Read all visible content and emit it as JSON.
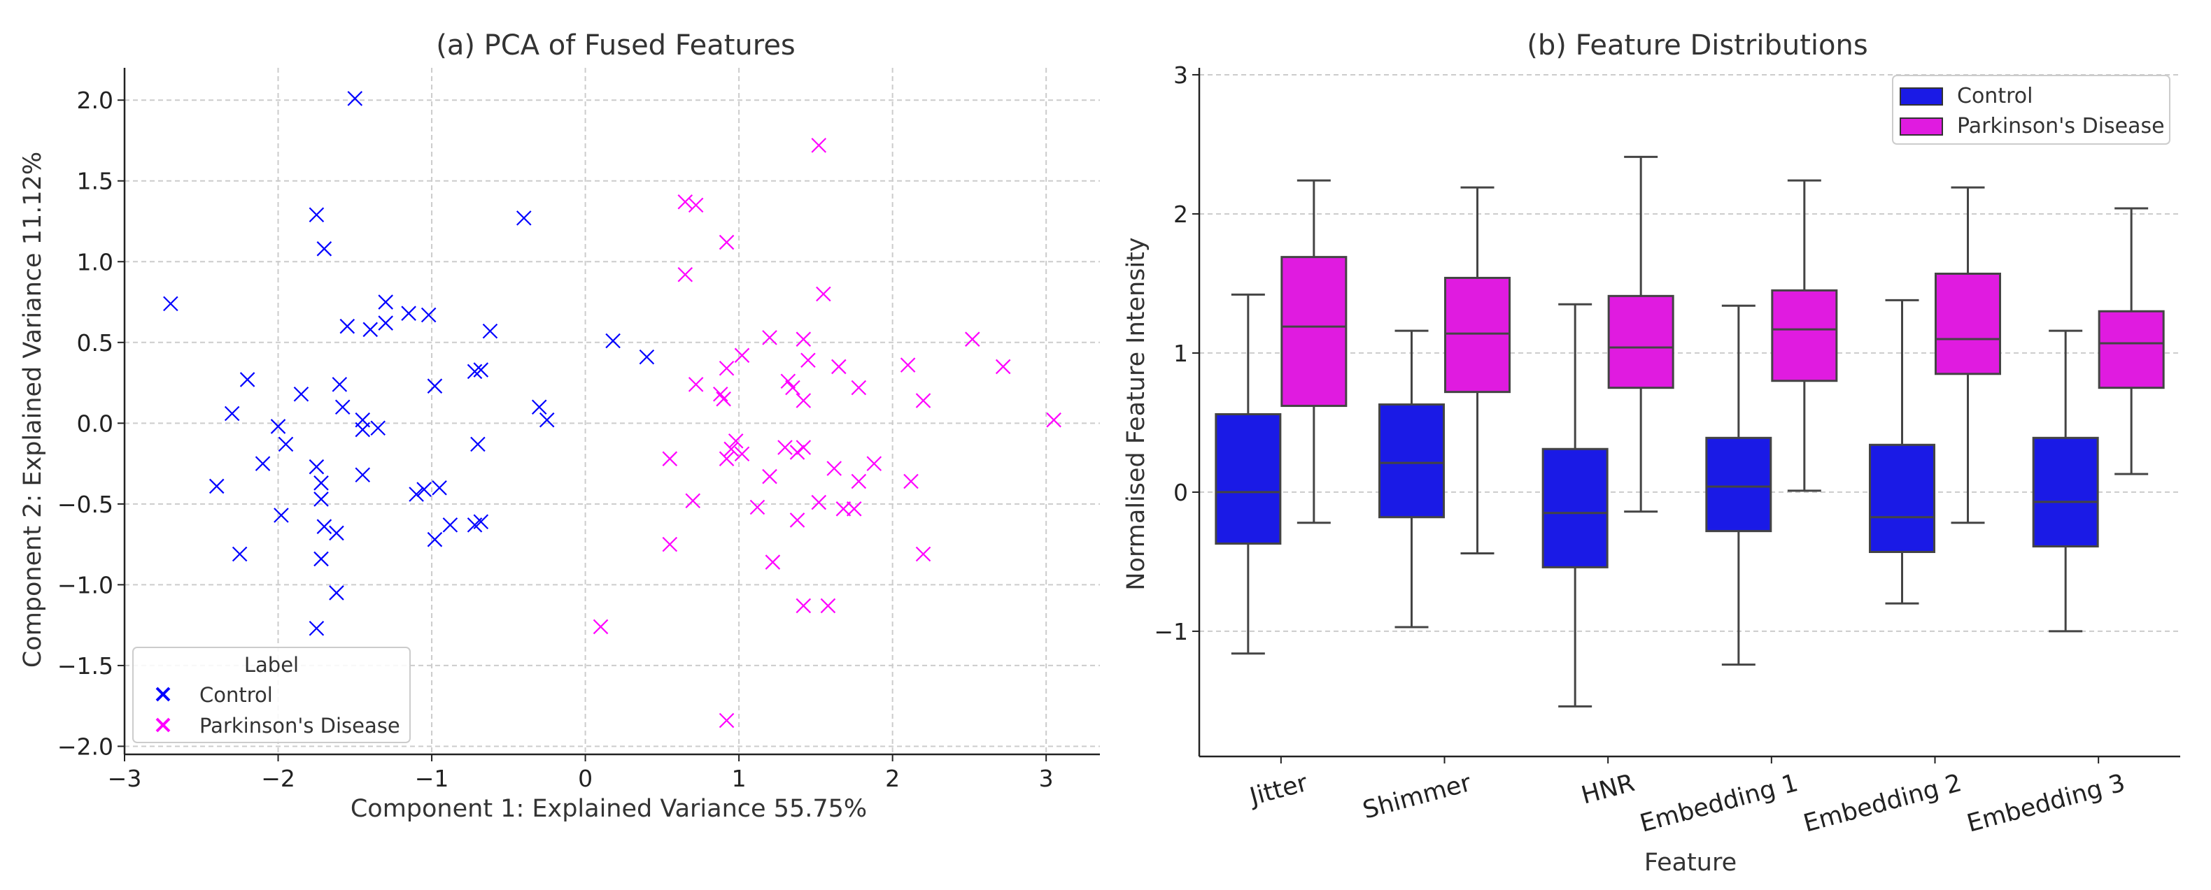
{
  "colors": {
    "control": "#0000ff",
    "pd": "#ff00ff",
    "control_box": "#1a1ae6",
    "pd_box": "#e01be0",
    "grid": "#cccccc",
    "axis": "#222222",
    "text": "#333333",
    "whisker": "#444444"
  },
  "chart_data": [
    {
      "type": "scatter",
      "title": "(a) PCA of Fused Features",
      "xlabel": "Component 1: Explained Variance 55.75%",
      "ylabel": "Component 2: Explained Variance 11.12%",
      "xlim": [
        -3,
        3.35
      ],
      "ylim": [
        -2.05,
        2.2
      ],
      "xticks": [
        -3,
        -2,
        -1,
        0,
        1,
        2,
        3
      ],
      "yticks": [
        -2.0,
        -1.5,
        -1.0,
        -0.5,
        0.0,
        0.5,
        1.0,
        1.5,
        2.0
      ],
      "ytick_labels": [
        "−2.0",
        "−1.5",
        "−1.0",
        "−0.5",
        "0.0",
        "0.5",
        "1.0",
        "1.5",
        "2.0"
      ],
      "xtick_labels": [
        "−3",
        "−2",
        "−1",
        "0",
        "1",
        "2",
        "3"
      ],
      "grid": true,
      "legend_position": "bottom-left",
      "legend_title": "Label",
      "series": [
        {
          "name": "Control",
          "color_key": "control",
          "points": [
            [
              -1.5,
              2.01
            ],
            [
              -1.75,
              1.29
            ],
            [
              -1.7,
              1.08
            ],
            [
              -0.4,
              1.27
            ],
            [
              -2.7,
              0.74
            ],
            [
              -1.3,
              0.75
            ],
            [
              -1.55,
              0.6
            ],
            [
              -1.3,
              0.62
            ],
            [
              -1.4,
              0.58
            ],
            [
              -1.15,
              0.68
            ],
            [
              -1.02,
              0.67
            ],
            [
              -0.62,
              0.57
            ],
            [
              -0.68,
              0.33
            ],
            [
              -0.72,
              0.32
            ],
            [
              -0.98,
              0.23
            ],
            [
              -2.2,
              0.27
            ],
            [
              -1.6,
              0.24
            ],
            [
              -1.85,
              0.18
            ],
            [
              -2.3,
              0.06
            ],
            [
              -1.58,
              0.1
            ],
            [
              -0.3,
              0.1
            ],
            [
              -0.25,
              0.02
            ],
            [
              -2.0,
              -0.02
            ],
            [
              -1.45,
              0.02
            ],
            [
              -1.45,
              -0.04
            ],
            [
              -1.35,
              -0.03
            ],
            [
              -1.95,
              -0.13
            ],
            [
              -0.7,
              -0.13
            ],
            [
              -2.1,
              -0.25
            ],
            [
              -1.75,
              -0.27
            ],
            [
              -1.45,
              -0.32
            ],
            [
              -1.72,
              -0.37
            ],
            [
              -2.4,
              -0.39
            ],
            [
              -1.05,
              -0.41
            ],
            [
              -0.95,
              -0.4
            ],
            [
              -1.1,
              -0.44
            ],
            [
              -1.72,
              -0.47
            ],
            [
              -1.98,
              -0.57
            ],
            [
              -0.88,
              -0.63
            ],
            [
              -0.72,
              -0.63
            ],
            [
              -0.68,
              -0.61
            ],
            [
              -1.7,
              -0.64
            ],
            [
              -1.62,
              -0.68
            ],
            [
              -0.98,
              -0.72
            ],
            [
              -2.25,
              -0.81
            ],
            [
              -1.72,
              -0.84
            ],
            [
              -1.62,
              -1.05
            ],
            [
              -1.75,
              -1.27
            ],
            [
              0.18,
              0.51
            ],
            [
              0.4,
              0.41
            ]
          ]
        },
        {
          "name": "Parkinson's Disease",
          "color_key": "pd",
          "points": [
            [
              1.52,
              1.72
            ],
            [
              0.65,
              1.37
            ],
            [
              0.72,
              1.35
            ],
            [
              0.92,
              1.12
            ],
            [
              0.65,
              0.92
            ],
            [
              1.55,
              0.8
            ],
            [
              2.52,
              0.52
            ],
            [
              1.2,
              0.53
            ],
            [
              1.42,
              0.52
            ],
            [
              1.02,
              0.42
            ],
            [
              1.45,
              0.39
            ],
            [
              1.65,
              0.35
            ],
            [
              2.1,
              0.36
            ],
            [
              2.72,
              0.35
            ],
            [
              0.92,
              0.34
            ],
            [
              1.32,
              0.26
            ],
            [
              0.72,
              0.24
            ],
            [
              1.35,
              0.22
            ],
            [
              1.78,
              0.22
            ],
            [
              0.88,
              0.18
            ],
            [
              0.9,
              0.15
            ],
            [
              1.42,
              0.14
            ],
            [
              2.2,
              0.14
            ],
            [
              3.05,
              0.02
            ],
            [
              0.98,
              -0.11
            ],
            [
              0.95,
              -0.16
            ],
            [
              1.02,
              -0.19
            ],
            [
              1.3,
              -0.15
            ],
            [
              1.38,
              -0.18
            ],
            [
              1.42,
              -0.15
            ],
            [
              0.92,
              -0.22
            ],
            [
              0.55,
              -0.22
            ],
            [
              1.88,
              -0.25
            ],
            [
              1.62,
              -0.28
            ],
            [
              1.2,
              -0.33
            ],
            [
              2.12,
              -0.36
            ],
            [
              1.78,
              -0.36
            ],
            [
              0.7,
              -0.48
            ],
            [
              1.12,
              -0.52
            ],
            [
              1.52,
              -0.49
            ],
            [
              1.68,
              -0.53
            ],
            [
              1.75,
              -0.53
            ],
            [
              1.38,
              -0.6
            ],
            [
              0.55,
              -0.75
            ],
            [
              2.2,
              -0.81
            ],
            [
              1.22,
              -0.86
            ],
            [
              1.42,
              -1.13
            ],
            [
              1.58,
              -1.13
            ],
            [
              0.1,
              -1.26
            ],
            [
              0.92,
              -1.84
            ]
          ]
        }
      ]
    },
    {
      "type": "box",
      "title": "(b) Feature Distributions",
      "xlabel": "Feature",
      "ylabel": "Normalised Feature Intensity",
      "ylim": [
        -1.9,
        3.05
      ],
      "yticks": [
        -1,
        0,
        1,
        2,
        3
      ],
      "ytick_labels": [
        "−1",
        "0",
        "1",
        "2",
        "3"
      ],
      "grid": true,
      "legend_position": "top-right",
      "categories": [
        "Jitter",
        "Shimmer",
        "HNR",
        "Embedding 1",
        "Embedding 2",
        "Embedding 3"
      ],
      "series": [
        {
          "name": "Control",
          "color_key": "control_box",
          "boxes": [
            {
              "whislo": -1.16,
              "q1": -0.37,
              "med": 0.0,
              "q3": 0.56,
              "whishi": 1.42
            },
            {
              "whislo": -0.97,
              "q1": -0.18,
              "med": 0.21,
              "q3": 0.63,
              "whishi": 1.16
            },
            {
              "whislo": -1.54,
              "q1": -0.54,
              "med": -0.15,
              "q3": 0.31,
              "whishi": 1.35
            },
            {
              "whislo": -1.24,
              "q1": -0.28,
              "med": 0.04,
              "q3": 0.39,
              "whishi": 1.34
            },
            {
              "whislo": -0.8,
              "q1": -0.43,
              "med": -0.18,
              "q3": 0.34,
              "whishi": 1.38
            },
            {
              "whislo": -1.0,
              "q1": -0.39,
              "med": -0.07,
              "q3": 0.39,
              "whishi": 1.16
            }
          ]
        },
        {
          "name": "Parkinson's Disease",
          "color_key": "pd_box",
          "boxes": [
            {
              "whislo": -0.22,
              "q1": 0.62,
              "med": 1.19,
              "q3": 1.69,
              "whishi": 2.24
            },
            {
              "whislo": -0.44,
              "q1": 0.72,
              "med": 1.14,
              "q3": 1.54,
              "whishi": 2.19
            },
            {
              "whislo": -0.14,
              "q1": 0.75,
              "med": 1.04,
              "q3": 1.41,
              "whishi": 2.41
            },
            {
              "whislo": 0.01,
              "q1": 0.8,
              "med": 1.17,
              "q3": 1.45,
              "whishi": 2.24
            },
            {
              "whislo": -0.22,
              "q1": 0.85,
              "med": 1.1,
              "q3": 1.57,
              "whishi": 2.19
            },
            {
              "whislo": 0.13,
              "q1": 0.75,
              "med": 1.07,
              "q3": 1.3,
              "whishi": 2.04
            }
          ]
        }
      ]
    }
  ]
}
